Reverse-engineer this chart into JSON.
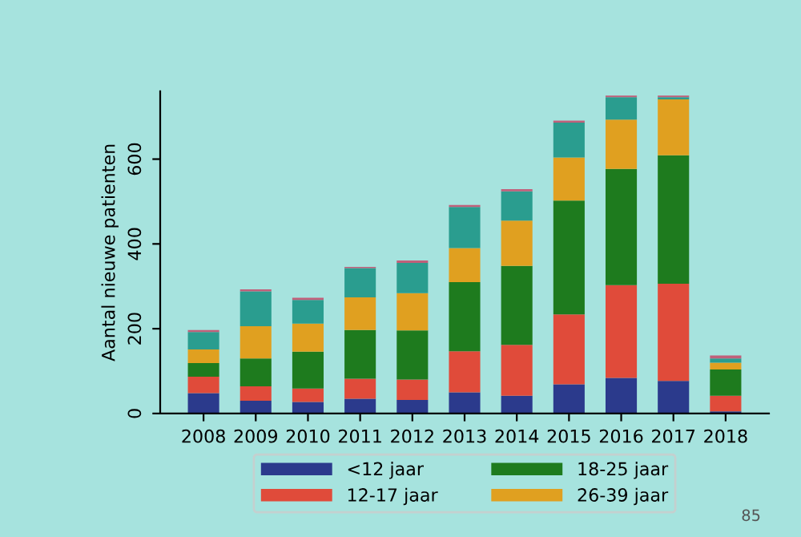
{
  "chart_data": {
    "type": "bar",
    "stacked": true,
    "ylabel": "Aantal nieuwe patienten",
    "categories": [
      "2008",
      "2009",
      "2010",
      "2011",
      "2012",
      "2013",
      "2014",
      "2015",
      "2016",
      "2017",
      "2018"
    ],
    "series": [
      {
        "name": "<12 jaar",
        "color": "#2b3a8c",
        "values": [
          48,
          30,
          27,
          35,
          32,
          50,
          42,
          69,
          84,
          77,
          5
        ]
      },
      {
        "name": "12-17 jaar",
        "color": "#e04b3a",
        "values": [
          39,
          34,
          32,
          47,
          48,
          97,
          120,
          165,
          219,
          229,
          37
        ]
      },
      {
        "name": "18-25 jaar",
        "color": "#1e7b1e",
        "values": [
          32,
          66,
          87,
          115,
          116,
          163,
          186,
          268,
          274,
          303,
          62
        ]
      },
      {
        "name": "26-39 jaar",
        "color": "#e0a020",
        "values": [
          32,
          76,
          66,
          77,
          88,
          80,
          107,
          102,
          116,
          132,
          16
        ]
      },
      {
        "color": "#2a9d8f",
        "values": [
          41,
          82,
          56,
          69,
          71,
          97,
          69,
          82,
          53,
          5,
          10
        ]
      },
      {
        "color": "#c0607a",
        "values": [
          5,
          5,
          5,
          3,
          6,
          5,
          5,
          5,
          4,
          4,
          7
        ]
      }
    ],
    "ylim": [
      0,
      760
    ],
    "yticks": [
      0,
      200,
      400,
      600
    ],
    "grid": false,
    "legend": "bottom",
    "annotations": [
      "85"
    ]
  }
}
